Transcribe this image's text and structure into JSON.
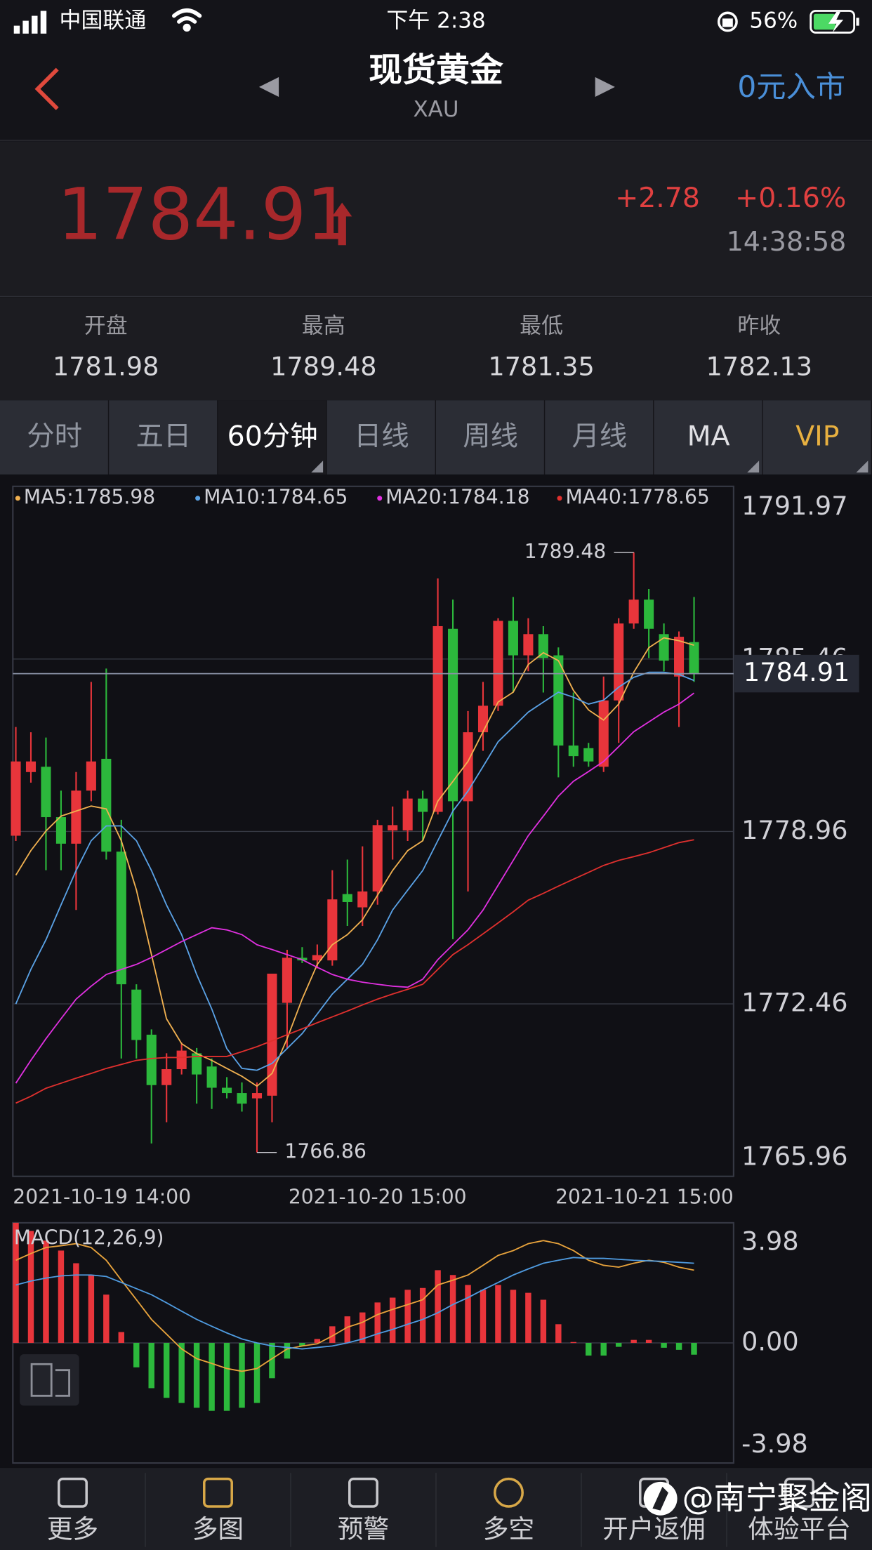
{
  "status_bar": {
    "carrier": "中国联通",
    "time": "下午 2:38",
    "battery": "56%"
  },
  "header": {
    "title": "现货黄金",
    "subtitle": "XAU",
    "action": "0元入市"
  },
  "quote": {
    "price": "1784.91",
    "change": "+2.78",
    "change_pct": "+0.16%",
    "time": "14:38:58"
  },
  "stats": [
    {
      "label": "开盘",
      "value": "1781.98"
    },
    {
      "label": "最高",
      "value": "1789.48"
    },
    {
      "label": "最低",
      "value": "1781.35"
    },
    {
      "label": "昨收",
      "value": "1782.13"
    }
  ],
  "tabs": [
    "分时",
    "五日",
    "60分钟",
    "日线",
    "周线",
    "月线",
    "MA",
    "VIP"
  ],
  "chart_data": [
    {
      "type": "candlestick",
      "categories": [
        "2021-10-19 14:00",
        null,
        null,
        null,
        null,
        null,
        null,
        null,
        null,
        null,
        null,
        null,
        null,
        null,
        null,
        null,
        null,
        null,
        null,
        null,
        null,
        null,
        null,
        null,
        "2021-10-20 15:00",
        null,
        null,
        null,
        null,
        null,
        null,
        null,
        null,
        null,
        null,
        null,
        null,
        null,
        null,
        null,
        null,
        null,
        null,
        null,
        null,
        "2021-10-21 15:00"
      ],
      "open": [
        1778.8,
        1781.2,
        1781.4,
        1779.5,
        1778.5,
        1780.5,
        1781.7,
        1778.2,
        1773.0,
        1771.3,
        1769.4,
        1770.0,
        1770.6,
        1770.1,
        1769.3,
        1769.1,
        1768.9,
        1769.0,
        1772.5,
        1774.2,
        1774.1,
        1774.1,
        1776.6,
        1776.1,
        1776.7,
        1779.0,
        1779.0,
        1780.2,
        1779.7,
        1786.6,
        1780.1,
        1782.7,
        1783.7,
        1786.9,
        1785.6,
        1786.4,
        1785.6,
        1782.2,
        1782.1,
        1781.4,
        1783.9,
        1786.8,
        1787.7,
        1786.4,
        1784.8,
        1786.1
      ],
      "high": [
        1782.9,
        1782.7,
        1782.5,
        1780.5,
        1781.2,
        1784.6,
        1785.1,
        1779.4,
        1773.2,
        1771.5,
        1770.6,
        1771.0,
        1770.8,
        1770.4,
        1769.7,
        1769.5,
        1769.5,
        1773.6,
        1774.5,
        1774.6,
        1774.7,
        1777.5,
        1777.9,
        1778.4,
        1779.4,
        1779.9,
        1780.5,
        1780.5,
        1788.5,
        1787.7,
        1783.5,
        1784.6,
        1787.0,
        1787.8,
        1787.0,
        1786.7,
        1785.9,
        1784.2,
        1782.3,
        1784.8,
        1787.0,
        1789.48,
        1788.1,
        1786.8,
        1786.5,
        1787.8
      ],
      "low": [
        1778.6,
        1780.8,
        1777.5,
        1777.5,
        1776.0,
        1780.1,
        1777.9,
        1770.4,
        1770.4,
        1767.2,
        1768.0,
        1769.8,
        1768.7,
        1768.5,
        1768.9,
        1768.4,
        1766.86,
        1768.0,
        1770.8,
        1774.0,
        1773.8,
        1773.9,
        1775.4,
        1775.4,
        1776.2,
        1777.9,
        1778.6,
        1778.6,
        1779.6,
        1774.9,
        1776.7,
        1782.0,
        1783.5,
        1784.2,
        1785.0,
        1784.2,
        1781.0,
        1781.4,
        1781.4,
        1781.2,
        1782.3,
        1786.6,
        1785.5,
        1785.0,
        1782.9,
        1784.6
      ],
      "close": [
        1781.6,
        1781.6,
        1779.5,
        1778.5,
        1780.5,
        1781.6,
        1778.2,
        1773.2,
        1771.1,
        1769.4,
        1770.0,
        1770.7,
        1769.8,
        1769.3,
        1769.1,
        1768.7,
        1769.1,
        1773.6,
        1774.2,
        1774.1,
        1774.3,
        1776.4,
        1776.3,
        1776.7,
        1779.2,
        1779.2,
        1780.2,
        1779.7,
        1786.7,
        1780.1,
        1782.7,
        1783.7,
        1786.9,
        1785.6,
        1786.4,
        1785.5,
        1782.2,
        1781.8,
        1781.6,
        1783.9,
        1786.8,
        1787.7,
        1786.6,
        1785.4,
        1786.3,
        1784.91
      ],
      "up_color": "#e8353b",
      "down_color": "#2cb83c",
      "series": [
        {
          "name": "MA5:",
          "color": "#f0b050",
          "values": [
            1777.31,
            1778.24,
            1778.98,
            1779.54,
            1779.73,
            1779.92,
            1779.81,
            1778.61,
            1776.75,
            1774.32,
            1771.9,
            1770.96,
            1770.59,
            1770.33,
            1770.03,
            1769.73,
            1769.36,
            1769.84,
            1771.15,
            1772.64,
            1773.95,
            1774.69,
            1775.07,
            1775.63,
            1776.56,
            1777.49,
            1778.24,
            1778.61,
            1780.1,
            1780.85,
            1781.6,
            1782.72,
            1783.84,
            1784.21,
            1785.25,
            1785.7,
            1785.4,
            1784.28,
            1783.54,
            1783.16,
            1783.76,
            1784.96,
            1785.89,
            1786.26,
            1786.15,
            1785.98
          ]
        },
        {
          "name": "MA10:",
          "color": "#5aa2e6",
          "values": [
            1772.46,
            1773.76,
            1774.88,
            1776.19,
            1777.49,
            1778.61,
            1779.17,
            1779.17,
            1778.61,
            1777.49,
            1776.19,
            1775.07,
            1773.57,
            1772.27,
            1770.78,
            1770.03,
            1769.96,
            1770.22,
            1770.78,
            1771.34,
            1772.08,
            1772.83,
            1773.39,
            1773.95,
            1774.88,
            1776.0,
            1776.75,
            1777.49,
            1778.61,
            1779.73,
            1780.48,
            1781.41,
            1782.34,
            1782.9,
            1783.46,
            1783.84,
            1784.21,
            1784.02,
            1783.76,
            1783.91,
            1784.4,
            1784.77,
            1784.96,
            1784.96,
            1784.88,
            1784.65
          ]
        },
        {
          "name": "MA20:",
          "color": "#e030e0",
          "values": [
            1769.47,
            1770.33,
            1771.15,
            1771.9,
            1772.64,
            1773.13,
            1773.57,
            1773.76,
            1773.95,
            1774.21,
            1774.51,
            1774.81,
            1775.07,
            1775.33,
            1775.25,
            1775.07,
            1774.69,
            1774.51,
            1774.32,
            1774.13,
            1773.84,
            1773.57,
            1773.39,
            1773.28,
            1773.2,
            1773.13,
            1773.09,
            1773.39,
            1774.13,
            1774.69,
            1775.25,
            1776.0,
            1776.93,
            1777.87,
            1778.8,
            1779.54,
            1780.29,
            1780.85,
            1781.22,
            1781.6,
            1782.16,
            1782.72,
            1783.09,
            1783.46,
            1783.76,
            1784.18
          ]
        },
        {
          "name": "MA40:",
          "color": "#e0302e",
          "values": [
            1768.72,
            1768.98,
            1769.28,
            1769.47,
            1769.66,
            1769.84,
            1770.03,
            1770.18,
            1770.33,
            1770.4,
            1770.44,
            1770.44,
            1770.48,
            1770.48,
            1770.48,
            1770.66,
            1770.85,
            1771.07,
            1771.3,
            1771.52,
            1771.75,
            1771.97,
            1772.19,
            1772.42,
            1772.64,
            1772.83,
            1773.01,
            1773.2,
            1773.76,
            1774.32,
            1774.69,
            1775.1,
            1775.51,
            1775.93,
            1776.37,
            1776.63,
            1776.9,
            1777.16,
            1777.42,
            1777.68,
            1777.87,
            1778.01,
            1778.16,
            1778.35,
            1778.54,
            1778.65
          ]
        }
      ],
      "ylim": [
        1765.96,
        1791.97
      ],
      "yticks": [
        1791.97,
        1785.46,
        1778.96,
        1772.46,
        1765.96
      ],
      "grid": true
    },
    {
      "type": "macd",
      "title": "MACD(12,26,9)",
      "values": [
        3.98,
        3.71,
        3.39,
        3.06,
        2.64,
        2.25,
        1.6,
        0.36,
        -0.81,
        -1.5,
        -1.82,
        -1.99,
        -2.15,
        -2.25,
        -2.25,
        -2.15,
        -1.99,
        -1.17,
        -0.52,
        -0.1,
        0.13,
        0.55,
        0.88,
        1.01,
        1.34,
        1.5,
        1.76,
        1.82,
        2.41,
        2.25,
        1.92,
        1.76,
        1.92,
        1.76,
        1.66,
        1.43,
        0.62,
        0.03,
        -0.42,
        -0.42,
        -0.13,
        0.1,
        0.1,
        -0.16,
        -0.23,
        -0.39
      ],
      "up_color": "#e8353b",
      "down_color": "#2cb83c",
      "series": [
        {
          "color": "#e8a33c",
          "values": [
            2.74,
            2.96,
            3.16,
            3.22,
            3.29,
            3.16,
            2.74,
            2.08,
            1.43,
            0.78,
            0.29,
            -0.2,
            -0.52,
            -0.68,
            -0.85,
            -0.94,
            -0.85,
            -0.52,
            -0.2,
            -0.1,
            -0.03,
            0.23,
            0.52,
            0.68,
            0.94,
            1.11,
            1.27,
            1.43,
            1.92,
            2.08,
            2.25,
            2.57,
            2.9,
            3.06,
            3.29,
            3.39,
            3.29,
            3.06,
            2.74,
            2.57,
            2.51,
            2.64,
            2.74,
            2.67,
            2.51,
            2.41
          ]
        },
        {
          "color": "#4f9be0",
          "values": [
            1.92,
            2.05,
            2.15,
            2.22,
            2.25,
            2.25,
            2.2,
            2.0,
            1.8,
            1.6,
            1.33,
            1.05,
            0.78,
            0.55,
            0.33,
            0.13,
            0.0,
            -0.1,
            -0.15,
            -0.2,
            -0.15,
            -0.1,
            0.0,
            0.13,
            0.3,
            0.45,
            0.62,
            0.78,
            1.0,
            1.27,
            1.5,
            1.76,
            2.0,
            2.25,
            2.45,
            2.64,
            2.74,
            2.83,
            2.8,
            2.8,
            2.77,
            2.74,
            2.72,
            2.7,
            2.67,
            2.64
          ]
        }
      ],
      "ylim": [
        -3.98,
        3.98
      ],
      "yticks": [
        3.98,
        {
          "value": 0,
          "label": "0.00"
        },
        -3.98
      ]
    }
  ],
  "nav": [
    "更多",
    "多图",
    "预警",
    "多空",
    "开户返佣",
    "体验平台"
  ],
  "watermark": "@南宁聚金阁"
}
